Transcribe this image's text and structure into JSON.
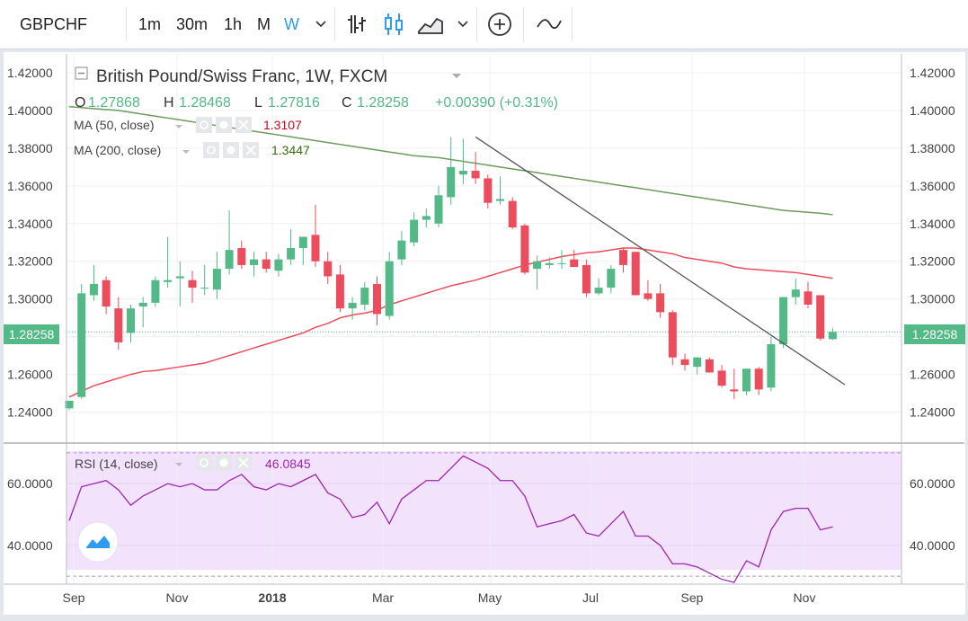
{
  "toolbar": {
    "symbol": "GBPCHF",
    "intervals": [
      "1m",
      "30m",
      "1h",
      "M",
      "W"
    ],
    "active_interval": "W",
    "icons": [
      "chevron-down-icon",
      "bar-chart-icon",
      "candles-icon",
      "area-chart-icon",
      "chevron-down-icon",
      "add-indicator-icon",
      "line-compare-icon"
    ]
  },
  "legend": {
    "title": "British Pound/Swiss Franc, 1W, FXCM",
    "ohlc_o_label": "O",
    "ohlc_o": "1.27868",
    "ohlc_h_label": "H",
    "ohlc_h": "1.28468",
    "ohlc_l_label": "L",
    "ohlc_l": "1.27816",
    "ohlc_c_label": "C",
    "ohlc_c": "1.28258",
    "change": "+0.00390 (+0.31%)",
    "ma50_label": "MA (50, close)",
    "ma50_value": "1.3107",
    "ma200_label": "MA (200, close)",
    "ma200_value": "1.3447",
    "rsi_label": "RSI (14, close)",
    "rsi_value": "46.0845",
    "last_price": "1.28258"
  },
  "colors": {
    "up": "#53b987",
    "down": "#eb4d5c",
    "ma50": "#eb4d5c",
    "ma200": "#6b9c5c",
    "trendline": "#555555",
    "rsi": "#9c27b0",
    "rsi_band": "#f3e2fb",
    "grid": "#eef0f3"
  },
  "chart_data": [
    {
      "type": "candlestick",
      "title": "British Pound/Swiss Franc, 1W, FXCM",
      "ylim": [
        1.225,
        1.43
      ],
      "y_ticks": [
        "1.42000",
        "1.40000",
        "1.38000",
        "1.36000",
        "1.34000",
        "1.32000",
        "1.30000",
        "1.28000",
        "1.26000",
        "1.24000"
      ],
      "x_tick_labels": [
        "Sep",
        "Nov",
        "2018",
        "Mar",
        "May",
        "Jul",
        "Sep",
        "Nov"
      ],
      "candles": [
        {
          "o": 1.242,
          "h": 1.246,
          "l": 1.241,
          "c": 1.246
        },
        {
          "o": 1.248,
          "h": 1.308,
          "l": 1.247,
          "c": 1.303
        },
        {
          "o": 1.302,
          "h": 1.318,
          "l": 1.299,
          "c": 1.308
        },
        {
          "o": 1.31,
          "h": 1.312,
          "l": 1.292,
          "c": 1.296
        },
        {
          "o": 1.295,
          "h": 1.301,
          "l": 1.273,
          "c": 1.277
        },
        {
          "o": 1.282,
          "h": 1.297,
          "l": 1.277,
          "c": 1.295
        },
        {
          "o": 1.296,
          "h": 1.301,
          "l": 1.285,
          "c": 1.298
        },
        {
          "o": 1.298,
          "h": 1.312,
          "l": 1.296,
          "c": 1.31
        },
        {
          "o": 1.309,
          "h": 1.333,
          "l": 1.306,
          "c": 1.31
        },
        {
          "o": 1.311,
          "h": 1.32,
          "l": 1.296,
          "c": 1.312
        },
        {
          "o": 1.31,
          "h": 1.315,
          "l": 1.298,
          "c": 1.306
        },
        {
          "o": 1.306,
          "h": 1.318,
          "l": 1.302,
          "c": 1.306
        },
        {
          "o": 1.305,
          "h": 1.325,
          "l": 1.3,
          "c": 1.316
        },
        {
          "o": 1.316,
          "h": 1.347,
          "l": 1.313,
          "c": 1.326
        },
        {
          "o": 1.327,
          "h": 1.331,
          "l": 1.316,
          "c": 1.318
        },
        {
          "o": 1.318,
          "h": 1.325,
          "l": 1.312,
          "c": 1.321
        },
        {
          "o": 1.321,
          "h": 1.325,
          "l": 1.314,
          "c": 1.316
        },
        {
          "o": 1.315,
          "h": 1.324,
          "l": 1.312,
          "c": 1.321
        },
        {
          "o": 1.321,
          "h": 1.337,
          "l": 1.318,
          "c": 1.327
        },
        {
          "o": 1.327,
          "h": 1.332,
          "l": 1.318,
          "c": 1.333
        },
        {
          "o": 1.334,
          "h": 1.35,
          "l": 1.317,
          "c": 1.32
        },
        {
          "o": 1.32,
          "h": 1.325,
          "l": 1.308,
          "c": 1.312
        },
        {
          "o": 1.313,
          "h": 1.318,
          "l": 1.293,
          "c": 1.295
        },
        {
          "o": 1.295,
          "h": 1.301,
          "l": 1.289,
          "c": 1.298
        },
        {
          "o": 1.297,
          "h": 1.309,
          "l": 1.294,
          "c": 1.306
        },
        {
          "o": 1.308,
          "h": 1.312,
          "l": 1.286,
          "c": 1.292
        },
        {
          "o": 1.291,
          "h": 1.325,
          "l": 1.289,
          "c": 1.32
        },
        {
          "o": 1.321,
          "h": 1.336,
          "l": 1.318,
          "c": 1.331
        },
        {
          "o": 1.33,
          "h": 1.346,
          "l": 1.328,
          "c": 1.342
        },
        {
          "o": 1.342,
          "h": 1.348,
          "l": 1.338,
          "c": 1.344
        },
        {
          "o": 1.34,
          "h": 1.36,
          "l": 1.338,
          "c": 1.355
        },
        {
          "o": 1.354,
          "h": 1.386,
          "l": 1.35,
          "c": 1.37
        },
        {
          "o": 1.366,
          "h": 1.385,
          "l": 1.361,
          "c": 1.368
        },
        {
          "o": 1.368,
          "h": 1.378,
          "l": 1.361,
          "c": 1.364
        },
        {
          "o": 1.364,
          "h": 1.366,
          "l": 1.348,
          "c": 1.351
        },
        {
          "o": 1.352,
          "h": 1.365,
          "l": 1.35,
          "c": 1.353
        },
        {
          "o": 1.352,
          "h": 1.354,
          "l": 1.337,
          "c": 1.338
        },
        {
          "o": 1.339,
          "h": 1.34,
          "l": 1.313,
          "c": 1.314
        },
        {
          "o": 1.316,
          "h": 1.323,
          "l": 1.305,
          "c": 1.32
        },
        {
          "o": 1.318,
          "h": 1.322,
          "l": 1.316,
          "c": 1.319
        },
        {
          "o": 1.319,
          "h": 1.326,
          "l": 1.316,
          "c": 1.319
        },
        {
          "o": 1.321,
          "h": 1.326,
          "l": 1.318,
          "c": 1.317
        },
        {
          "o": 1.318,
          "h": 1.321,
          "l": 1.301,
          "c": 1.303
        },
        {
          "o": 1.303,
          "h": 1.311,
          "l": 1.302,
          "c": 1.306
        },
        {
          "o": 1.306,
          "h": 1.318,
          "l": 1.303,
          "c": 1.316
        },
        {
          "o": 1.326,
          "h": 1.327,
          "l": 1.314,
          "c": 1.318
        },
        {
          "o": 1.325,
          "h": 1.325,
          "l": 1.302,
          "c": 1.302
        },
        {
          "o": 1.303,
          "h": 1.31,
          "l": 1.299,
          "c": 1.3
        },
        {
          "o": 1.303,
          "h": 1.308,
          "l": 1.29,
          "c": 1.293
        },
        {
          "o": 1.293,
          "h": 1.294,
          "l": 1.265,
          "c": 1.269
        },
        {
          "o": 1.268,
          "h": 1.271,
          "l": 1.262,
          "c": 1.265
        },
        {
          "o": 1.264,
          "h": 1.269,
          "l": 1.26,
          "c": 1.269
        },
        {
          "o": 1.268,
          "h": 1.269,
          "l": 1.262,
          "c": 1.261
        },
        {
          "o": 1.262,
          "h": 1.265,
          "l": 1.253,
          "c": 1.254
        },
        {
          "o": 1.252,
          "h": 1.263,
          "l": 1.247,
          "c": 1.251
        },
        {
          "o": 1.251,
          "h": 1.263,
          "l": 1.249,
          "c": 1.263
        },
        {
          "o": 1.263,
          "h": 1.264,
          "l": 1.249,
          "c": 1.252
        },
        {
          "o": 1.253,
          "h": 1.28,
          "l": 1.251,
          "c": 1.276
        },
        {
          "o": 1.276,
          "h": 1.301,
          "l": 1.274,
          "c": 1.301
        },
        {
          "o": 1.301,
          "h": 1.311,
          "l": 1.297,
          "c": 1.305
        },
        {
          "o": 1.304,
          "h": 1.309,
          "l": 1.295,
          "c": 1.297
        },
        {
          "o": 1.302,
          "h": 1.302,
          "l": 1.278,
          "c": 1.279
        },
        {
          "o": 1.2787,
          "h": 1.2847,
          "l": 1.2782,
          "c": 1.2826
        }
      ],
      "ma50": [
        1.248,
        1.251,
        1.254,
        1.256,
        1.258,
        1.26,
        1.2615,
        1.262,
        1.263,
        1.264,
        1.265,
        1.266,
        1.268,
        1.27,
        1.272,
        1.274,
        1.276,
        1.278,
        1.28,
        1.282,
        1.285,
        1.287,
        1.29,
        1.2915,
        1.2925,
        1.294,
        1.297,
        1.299,
        1.301,
        1.303,
        1.305,
        1.307,
        1.3085,
        1.31,
        1.312,
        1.314,
        1.316,
        1.318,
        1.3195,
        1.321,
        1.3225,
        1.3235,
        1.3245,
        1.325,
        1.326,
        1.327,
        1.327,
        1.326,
        1.325,
        1.324,
        1.322,
        1.321,
        1.32,
        1.319,
        1.317,
        1.316,
        1.3155,
        1.315,
        1.3145,
        1.314,
        1.313,
        1.312,
        1.311
      ],
      "ma200": [
        1.402,
        1.4015,
        1.401,
        1.4005,
        1.4,
        1.399,
        1.398,
        1.397,
        1.396,
        1.395,
        1.394,
        1.393,
        1.392,
        1.391,
        1.39,
        1.389,
        1.388,
        1.387,
        1.386,
        1.385,
        1.384,
        1.383,
        1.382,
        1.381,
        1.38,
        1.379,
        1.378,
        1.377,
        1.376,
        1.3755,
        1.375,
        1.374,
        1.373,
        1.372,
        1.371,
        1.37,
        1.369,
        1.368,
        1.367,
        1.366,
        1.365,
        1.364,
        1.363,
        1.362,
        1.361,
        1.36,
        1.359,
        1.358,
        1.357,
        1.356,
        1.355,
        1.354,
        1.353,
        1.352,
        1.351,
        1.35,
        1.349,
        1.348,
        1.347,
        1.3465,
        1.346,
        1.3455,
        1.3447
      ],
      "trendline": [
        {
          "i": 33,
          "price": 1.386
        },
        {
          "i": 63,
          "price": 1.2545
        }
      ]
    },
    {
      "type": "line",
      "title": "RSI (14, close)",
      "ylim": [
        28,
        72
      ],
      "y_ticks": [
        "60.0000",
        "40.0000"
      ],
      "band": [
        30,
        70
      ],
      "values": [
        48,
        59,
        60,
        61,
        58,
        53,
        56,
        58,
        60,
        59,
        60,
        58,
        58,
        61,
        63,
        59,
        58,
        60,
        59,
        61,
        63,
        57,
        55,
        49,
        50,
        54,
        47,
        55,
        58,
        61,
        61,
        65,
        69,
        67,
        65,
        61,
        61,
        56,
        46,
        47,
        48,
        50,
        44,
        43,
        47,
        51,
        43,
        43,
        40,
        34,
        34,
        33,
        31,
        29,
        28,
        35,
        33,
        45,
        51,
        52,
        52,
        45,
        46
      ]
    }
  ]
}
